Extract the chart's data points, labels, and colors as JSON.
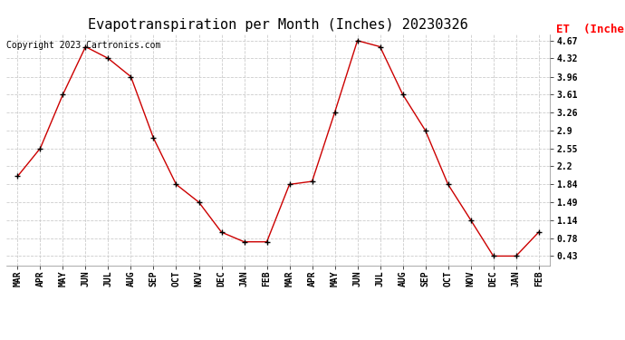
{
  "title": "Evapotranspiration per Month (Inches) 20230326",
  "legend_label": "ET  (Inches)",
  "copyright_text": "Copyright 2023 Cartronics.com",
  "x_labels": [
    "MAR",
    "APR",
    "MAY",
    "JUN",
    "JUL",
    "AUG",
    "SEP",
    "OCT",
    "NOV",
    "DEC",
    "JAN",
    "FEB",
    "MAR",
    "APR",
    "MAY",
    "JUN",
    "JUL",
    "AUG",
    "SEP",
    "OCT",
    "NOV",
    "DEC",
    "JAN",
    "FEB"
  ],
  "y_values": [
    2.0,
    2.55,
    3.61,
    4.55,
    4.32,
    3.96,
    2.75,
    1.84,
    1.49,
    0.9,
    0.71,
    0.71,
    1.84,
    1.9,
    3.26,
    4.67,
    4.55,
    3.61,
    2.9,
    1.84,
    1.14,
    0.43,
    0.43,
    0.9
  ],
  "y_ticks": [
    0.43,
    0.78,
    1.14,
    1.49,
    1.84,
    2.2,
    2.55,
    2.9,
    3.26,
    3.61,
    3.96,
    4.32,
    4.67
  ],
  "line_color": "#CC0000",
  "marker_color": "#000000",
  "grid_color": "#CCCCCC",
  "bg_color": "#FFFFFF",
  "title_fontsize": 11,
  "legend_fontsize": 9,
  "tick_fontsize": 7,
  "copyright_fontsize": 7
}
